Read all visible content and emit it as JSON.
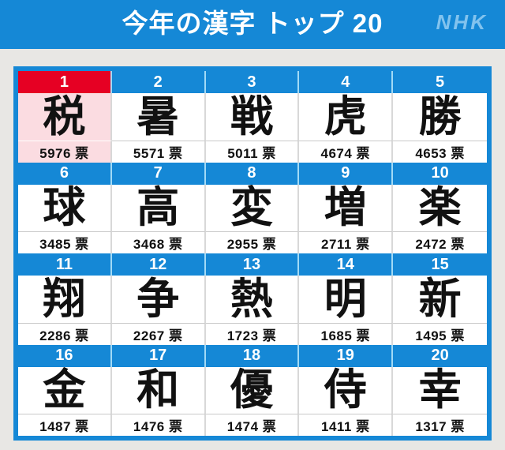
{
  "header": {
    "title": "今年の漢字 トップ 20",
    "logo": "NHK"
  },
  "colors": {
    "header_blue": "#1588d6",
    "frame_blue": "#1588d6",
    "rank_bar_blue": "#1588d6",
    "rank1_red": "#e60023",
    "rank1_pink_bg": "#fbdce1",
    "logo_light_blue": "#82c3ee",
    "rank_gap_light_blue": "#a2daf6",
    "page_bg_gray": "#e8e7e4",
    "cell_separator_gray": "#d8d8d8"
  },
  "vote_unit": "票",
  "entries": [
    {
      "rank": "1",
      "kanji": "税",
      "votes_label": "5976 票"
    },
    {
      "rank": "2",
      "kanji": "暑",
      "votes_label": "5571 票"
    },
    {
      "rank": "3",
      "kanji": "戦",
      "votes_label": "5011 票"
    },
    {
      "rank": "4",
      "kanji": "虎",
      "votes_label": "4674 票"
    },
    {
      "rank": "5",
      "kanji": "勝",
      "votes_label": "4653 票"
    },
    {
      "rank": "6",
      "kanji": "球",
      "votes_label": "3485 票"
    },
    {
      "rank": "7",
      "kanji": "高",
      "votes_label": "3468 票"
    },
    {
      "rank": "8",
      "kanji": "変",
      "votes_label": "2955 票"
    },
    {
      "rank": "9",
      "kanji": "増",
      "votes_label": "2711 票"
    },
    {
      "rank": "10",
      "kanji": "楽",
      "votes_label": "2472 票"
    },
    {
      "rank": "11",
      "kanji": "翔",
      "votes_label": "2286 票"
    },
    {
      "rank": "12",
      "kanji": "争",
      "votes_label": "2267 票"
    },
    {
      "rank": "13",
      "kanji": "熱",
      "votes_label": "1723 票"
    },
    {
      "rank": "14",
      "kanji": "明",
      "votes_label": "1685 票"
    },
    {
      "rank": "15",
      "kanji": "新",
      "votes_label": "1495 票"
    },
    {
      "rank": "16",
      "kanji": "金",
      "votes_label": "1487 票"
    },
    {
      "rank": "17",
      "kanji": "和",
      "votes_label": "1476 票"
    },
    {
      "rank": "18",
      "kanji": "優",
      "votes_label": "1474 票"
    },
    {
      "rank": "19",
      "kanji": "侍",
      "votes_label": "1411 票"
    },
    {
      "rank": "20",
      "kanji": "幸",
      "votes_label": "1317 票"
    }
  ],
  "chart_data": {
    "type": "table",
    "title": "今年の漢字 トップ 20",
    "categories": [
      "税",
      "暑",
      "戦",
      "虎",
      "勝",
      "球",
      "高",
      "変",
      "増",
      "楽",
      "翔",
      "争",
      "熱",
      "明",
      "新",
      "金",
      "和",
      "優",
      "侍",
      "幸"
    ],
    "values": [
      5976,
      5571,
      5011,
      4674,
      4653,
      3485,
      3468,
      2955,
      2711,
      2472,
      2286,
      2267,
      1723,
      1685,
      1495,
      1487,
      1476,
      1474,
      1411,
      1317
    ],
    "unit": "票",
    "layout": "grid-5x4-ranked",
    "highlight_rank": 1
  }
}
